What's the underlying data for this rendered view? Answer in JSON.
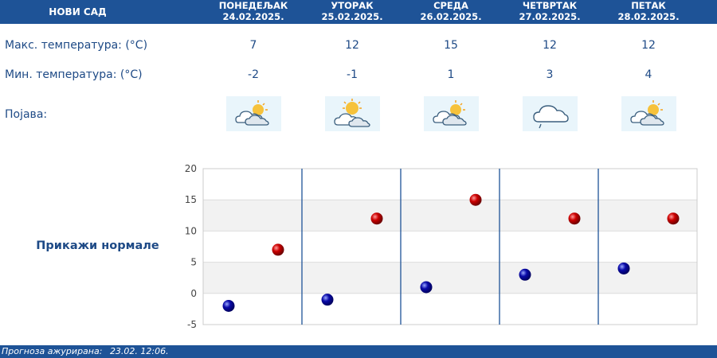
{
  "header": {
    "city": "НОВИ САД"
  },
  "days": [
    {
      "name": "ПОНЕДЕЉАК",
      "date": "24.02.2025.",
      "max": 7,
      "min": -2,
      "icon": "partly-cloudy-icon"
    },
    {
      "name": "УТОРАК",
      "date": "25.02.2025.",
      "max": 12,
      "min": -1,
      "icon": "partly-sunny-icon"
    },
    {
      "name": "СРЕДА",
      "date": "26.02.2025.",
      "max": 15,
      "min": 1,
      "icon": "partly-cloudy-icon"
    },
    {
      "name": "ЧЕТВРТАК",
      "date": "27.02.2025.",
      "max": 12,
      "min": 3,
      "icon": "cloud-drizzle-icon"
    },
    {
      "name": "ПЕТАК",
      "date": "28.02.2025.",
      "max": 12,
      "min": 4,
      "icon": "partly-cloudy-icon"
    }
  ],
  "labels": {
    "max_temp": "Макс. температура: (°C)",
    "min_temp": "Мин. температура: (°C)",
    "phenomenon": "Појава:"
  },
  "normals_link": "Прикажи нормале",
  "footer": {
    "label": "Прогноза ажурирана:",
    "value": "23.02. 12:06."
  },
  "colors": {
    "header_bg": "#1e5397",
    "text": "#1e4a86",
    "max_marker": "#cc0000",
    "min_marker": "#0a0aa8",
    "band": "#f2f2f2"
  },
  "chart_data": {
    "type": "scatter",
    "categories": [
      "24.02.2025.",
      "25.02.2025.",
      "26.02.2025.",
      "27.02.2025.",
      "28.02.2025."
    ],
    "series": [
      {
        "values": [
          -2,
          -1,
          1,
          3,
          4
        ]
      },
      {
        "values": [
          7,
          12,
          15,
          12,
          12
        ]
      }
    ],
    "ylim": [
      -5,
      20
    ],
    "yticks": [
      20,
      15,
      10,
      5,
      0,
      -5
    ],
    "grid": true
  }
}
